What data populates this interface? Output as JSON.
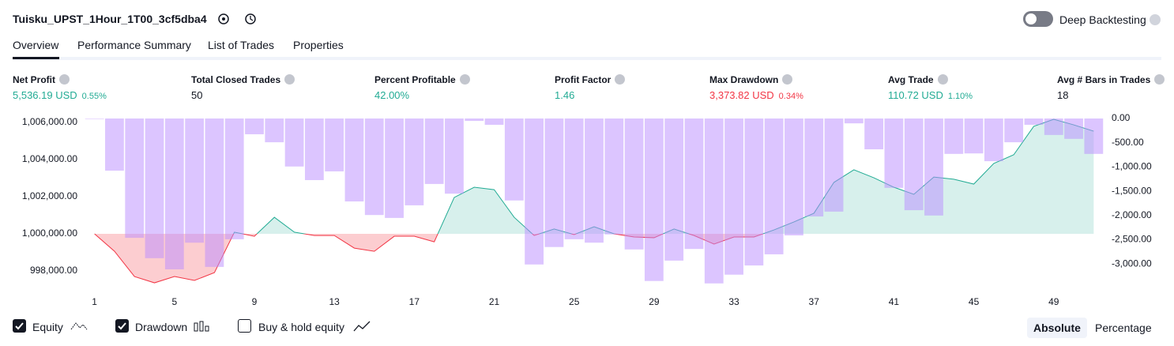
{
  "header": {
    "title": "Tuisku_UPST_1Hour_1T00_3cf5dba4",
    "toggle": "Deep Backtesting"
  },
  "tabs": [
    "Overview",
    "Performance Summary",
    "List of Trades",
    "Properties"
  ],
  "metrics": [
    {
      "label": "Net Profit",
      "value": "5,536.19 USD",
      "percent": "0.55%",
      "color": "#22ab94"
    },
    {
      "label": "Total Closed Trades",
      "value": "50",
      "color": "#131722"
    },
    {
      "label": "Percent Profitable",
      "value": "42.00%",
      "color": "#22ab94"
    },
    {
      "label": "Profit Factor",
      "value": "1.46",
      "color": "#22ab94"
    },
    {
      "label": "Max Drawdown",
      "value": "3,373.82 USD",
      "percent": "0.34%",
      "color": "#f23645"
    },
    {
      "label": "Avg Trade",
      "value": "110.72 USD",
      "percent": "1.10%",
      "color": "#22ab94"
    },
    {
      "label": "Avg # Bars in Trades",
      "value": "18",
      "color": "#131722"
    }
  ],
  "chart_data": {
    "type": "combo",
    "x": [
      1,
      2,
      3,
      4,
      5,
      6,
      7,
      8,
      9,
      10,
      11,
      12,
      13,
      14,
      15,
      16,
      17,
      18,
      19,
      20,
      21,
      22,
      23,
      24,
      25,
      26,
      27,
      28,
      29,
      30,
      31,
      32,
      33,
      34,
      35,
      36,
      37,
      38,
      39,
      40,
      41,
      42,
      43,
      44,
      45,
      46,
      47,
      48,
      49,
      50,
      51
    ],
    "xlim": [
      0.5,
      51.5
    ],
    "xticks": [
      1,
      5,
      9,
      13,
      17,
      21,
      25,
      29,
      33,
      37,
      41,
      45,
      49
    ],
    "ylim": [
      996851,
      1006213
    ],
    "yticks": [
      {
        "value": 998000,
        "label": "998,000.00"
      },
      {
        "value": 1000000,
        "label": "1,000,000.00"
      },
      {
        "value": 1002000,
        "label": "1,002,000.00"
      },
      {
        "value": 1004000,
        "label": "1,004,000.00"
      },
      {
        "value": 1006000,
        "label": "1,006,000.00"
      }
    ],
    "y2lim": [
      -3583,
      0
    ],
    "y2ticks": [
      {
        "value": 0,
        "label": "0.00"
      },
      {
        "value": -500,
        "label": "-500.00"
      },
      {
        "value": -1000,
        "label": "-1,000.00"
      },
      {
        "value": -1500,
        "label": "-1,500.00"
      },
      {
        "value": -2000,
        "label": "-2,000.00"
      },
      {
        "value": -2500,
        "label": "-2,500.00"
      },
      {
        "value": -3000,
        "label": "-3,000.00"
      }
    ],
    "series": [
      {
        "name": "Equity",
        "type": "line",
        "color": "#22ab94",
        "color_below": "#f23645",
        "values": [
          1000000,
          999060,
          997700,
          997360,
          997700,
          997490,
          997910,
          1000090,
          999870,
          1000890,
          1000090,
          999910,
          999910,
          999230,
          999060,
          999870,
          999870,
          999570,
          1001960,
          1002510,
          1002380,
          1000890,
          999910,
          1000260,
          999960,
          1000380,
          1000000,
          999830,
          999790,
          1000260,
          999910,
          999450,
          999830,
          999830,
          1000210,
          1000640,
          1001110,
          1002770,
          1003450,
          1003020,
          1002510,
          1002130,
          1003060,
          1002940,
          1002680,
          1003790,
          1004260,
          1005790,
          1006170,
          1005870,
          1005530
        ]
      },
      {
        "name": "Drawdown",
        "type": "bar",
        "axis": "y2",
        "color": "rgba(186,140,255,0.5)",
        "values": [
          -10,
          -1075,
          -2460,
          -2880,
          -3110,
          -2560,
          -3060,
          -2490,
          -325,
          -490,
          -990,
          -1270,
          -1090,
          -1710,
          -1990,
          -2050,
          -1790,
          -1350,
          -1550,
          -50,
          -130,
          -1690,
          -3010,
          -2650,
          -2490,
          -2560,
          -2390,
          -2700,
          -3350,
          -2930,
          -2690,
          -3400,
          -3220,
          -3030,
          -2800,
          -2410,
          -2020,
          -1920,
          -100,
          -635,
          -1430,
          -1890,
          -2000,
          -730,
          -720,
          -880,
          -490,
          -130,
          -340,
          -420,
          -730
        ]
      }
    ]
  },
  "controls": {
    "checkboxes": [
      "Equity",
      "Drawdown",
      "Buy & hold equity"
    ],
    "buttons": [
      "Absolute",
      "Percentage"
    ]
  }
}
